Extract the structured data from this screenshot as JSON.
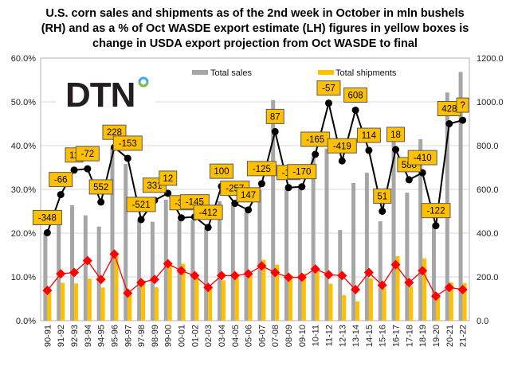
{
  "chart_data": {
    "type": "bar",
    "title": "U.S. corn sales and shipments as of the 2nd week in October in mln bushels\n(RH) and as a % of Oct WASDE export estimate  (LH) figures in yellow boxes is\nchange in USDA export projection from Oct WASDE to final",
    "categories": [
      "90-91",
      "91-92",
      "92-93",
      "93-94",
      "94-95",
      "95-96",
      "96-97",
      "97-98",
      "98-99",
      "99-00",
      "00-01",
      "01-02",
      "02-03",
      "03-04",
      "04-05",
      "05-06",
      "06-07",
      "07-08",
      "08-09",
      "09-10",
      "10-11",
      "11-12",
      "12-13",
      "13-14",
      "14-15",
      "15-16",
      "16-17",
      "17-18",
      "18-19",
      "19-20",
      "20-21",
      "21-22"
    ],
    "left_axis": {
      "range": [
        0,
        60
      ],
      "ticks": [
        "0.0%",
        "10.0%",
        "20.0%",
        "30.0%",
        "40.0%",
        "50.0%",
        "60.0%"
      ]
    },
    "right_axis": {
      "range": [
        0,
        1200
      ],
      "ticks": [
        "0.0",
        "200.0",
        "400.0",
        "600.0",
        "800.0",
        "1000.0",
        "1200.0"
      ]
    },
    "grid": true,
    "legend_placement": "top",
    "series": [
      {
        "name": "Total sales",
        "type": "bar",
        "axis": "right",
        "color": "#A6A6A6",
        "values": [
          400,
          437,
          528,
          481,
          430,
          790,
          716,
          459,
          452,
          553,
          459,
          459,
          423,
          546,
          528,
          495,
          600,
          1008,
          600,
          620,
          750,
          786,
          414,
          629,
          676,
          454,
          883,
          585,
          829,
          442,
          1043,
          1137
        ]
      },
      {
        "name": "Total shipments",
        "type": "bar",
        "axis": "right",
        "color": "#FFC000",
        "values": [
          130,
          173,
          170,
          192,
          152,
          296,
          123,
          166,
          152,
          249,
          260,
          195,
          152,
          184,
          195,
          213,
          278,
          256,
          206,
          215,
          224,
          169,
          117,
          88,
          194,
          148,
          295,
          157,
          284,
          109,
          175,
          172
        ]
      },
      {
        "type": "line",
        "axis": "left",
        "color": "#000000",
        "marker": "circle",
        "values": [
          20.1,
          28.8,
          34.4,
          34.7,
          27.1,
          39.6,
          37.1,
          23.1,
          27.5,
          29.1,
          23.5,
          23.7,
          21.3,
          30.7,
          26.8,
          25.3,
          31.3,
          43.2,
          30.4,
          30.6,
          38.0,
          49.7,
          36.5,
          48.1,
          38.9,
          25.0,
          39.1,
          32.2,
          33.8,
          21.7,
          45.0,
          45.8
        ],
        "data_labels": [
          "-348",
          "-66",
          "11",
          "-72",
          "552",
          "228",
          "-153",
          "-521",
          "331",
          "12",
          "-33",
          "-145",
          "-412",
          "100",
          "-257",
          "147",
          "-125",
          "87",
          "-15",
          "-170",
          "-165",
          "-57",
          "-419",
          "608",
          "114",
          "51",
          "18",
          "588",
          "-410",
          "-122",
          "428",
          "?"
        ]
      },
      {
        "type": "line",
        "axis": "left",
        "color": "#FF0000",
        "marker": "diamond",
        "values": [
          6.9,
          10.7,
          11.0,
          13.7,
          9.4,
          15.2,
          6.3,
          8.7,
          9.4,
          13.0,
          11.4,
          10.3,
          7.6,
          10.3,
          10.3,
          10.7,
          12.5,
          11.0,
          9.9,
          9.9,
          11.8,
          10.5,
          10.3,
          7.1,
          11.0,
          8.1,
          12.8,
          8.7,
          11.4,
          5.6,
          7.6,
          7.1
        ]
      }
    ],
    "label_box_color": "#FFC000"
  },
  "logo": {
    "text": "DTN"
  }
}
